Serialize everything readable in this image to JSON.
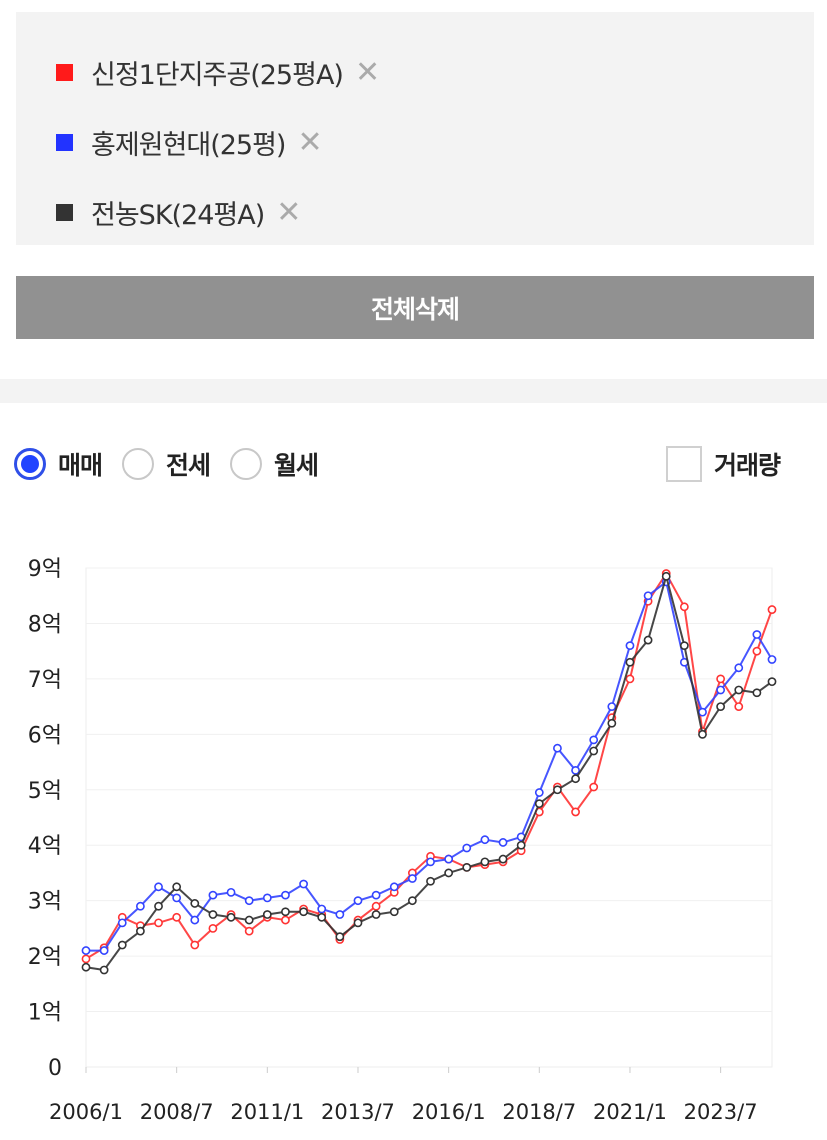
{
  "compare_list": {
    "items": [
      {
        "label": "신정1단지주공(25평A)",
        "color": "#ff1a1a"
      },
      {
        "label": "홍제원현대(25평)",
        "color": "#2233ff"
      },
      {
        "label": "전농SK(24평A)",
        "color": "#333333"
      }
    ],
    "remove_glyph": "✕"
  },
  "delete_all_label": "전체삭제",
  "trade_type": {
    "options": [
      "매매",
      "전세",
      "월세"
    ],
    "selected": "매매"
  },
  "volume_label": "거래량",
  "volume_checked": false,
  "chart_data": {
    "type": "line",
    "title": "",
    "xlabel": "",
    "ylabel": "",
    "x_ticks": [
      "2006/1",
      "2008/7",
      "2011/1",
      "2013/7",
      "2016/1",
      "2018/7",
      "2021/1",
      "2023/7"
    ],
    "x_range": [
      "2006/1",
      "2024/12"
    ],
    "y_ticks": [
      "0",
      "1억",
      "2억",
      "3억",
      "4억",
      "5억",
      "6억",
      "7억",
      "8억",
      "9억"
    ],
    "ylim": [
      0,
      9
    ],
    "y_unit": "억",
    "grid": true,
    "marker": "hollow-circle",
    "series": [
      {
        "name": "신정1단지주공(25평A)",
        "color": "#ff3333",
        "points": [
          [
            "2006/1",
            1.95
          ],
          [
            "2006/7",
            2.15
          ],
          [
            "2007/1",
            2.7
          ],
          [
            "2007/7",
            2.55
          ],
          [
            "2008/1",
            2.6
          ],
          [
            "2008/7",
            2.7
          ],
          [
            "2009/1",
            2.2
          ],
          [
            "2009/7",
            2.5
          ],
          [
            "2010/1",
            2.75
          ],
          [
            "2010/7",
            2.45
          ],
          [
            "2011/1",
            2.7
          ],
          [
            "2011/7",
            2.65
          ],
          [
            "2012/1",
            2.85
          ],
          [
            "2012/7",
            2.75
          ],
          [
            "2013/1",
            2.3
          ],
          [
            "2013/7",
            2.65
          ],
          [
            "2014/1",
            2.9
          ],
          [
            "2014/7",
            3.15
          ],
          [
            "2015/1",
            3.5
          ],
          [
            "2015/7",
            3.8
          ],
          [
            "2016/1",
            3.75
          ],
          [
            "2016/7",
            3.6
          ],
          [
            "2017/1",
            3.65
          ],
          [
            "2017/7",
            3.7
          ],
          [
            "2018/1",
            3.9
          ],
          [
            "2018/7",
            4.6
          ],
          [
            "2019/1",
            5.05
          ],
          [
            "2019/7",
            4.6
          ],
          [
            "2020/1",
            5.05
          ],
          [
            "2020/7",
            6.3
          ],
          [
            "2021/1",
            7.0
          ],
          [
            "2021/7",
            8.4
          ],
          [
            "2022/1",
            8.9
          ],
          [
            "2022/7",
            8.3
          ],
          [
            "2023/1",
            6.05
          ],
          [
            "2023/7",
            7.0
          ],
          [
            "2024/1",
            6.5
          ],
          [
            "2024/7",
            7.5
          ],
          [
            "2024/12",
            8.25
          ]
        ]
      },
      {
        "name": "홍제원현대(25평)",
        "color": "#3344ff",
        "points": [
          [
            "2006/1",
            2.1
          ],
          [
            "2006/7",
            2.1
          ],
          [
            "2007/1",
            2.6
          ],
          [
            "2007/7",
            2.9
          ],
          [
            "2008/1",
            3.25
          ],
          [
            "2008/7",
            3.05
          ],
          [
            "2009/1",
            2.65
          ],
          [
            "2009/7",
            3.1
          ],
          [
            "2010/1",
            3.15
          ],
          [
            "2010/7",
            3.0
          ],
          [
            "2011/1",
            3.05
          ],
          [
            "2011/7",
            3.1
          ],
          [
            "2012/1",
            3.3
          ],
          [
            "2012/7",
            2.85
          ],
          [
            "2013/1",
            2.75
          ],
          [
            "2013/7",
            3.0
          ],
          [
            "2014/1",
            3.1
          ],
          [
            "2014/7",
            3.25
          ],
          [
            "2015/1",
            3.4
          ],
          [
            "2015/7",
            3.7
          ],
          [
            "2016/1",
            3.75
          ],
          [
            "2016/7",
            3.95
          ],
          [
            "2017/1",
            4.1
          ],
          [
            "2017/7",
            4.05
          ],
          [
            "2018/1",
            4.15
          ],
          [
            "2018/7",
            4.95
          ],
          [
            "2019/1",
            5.75
          ],
          [
            "2019/7",
            5.35
          ],
          [
            "2020/1",
            5.9
          ],
          [
            "2020/7",
            6.5
          ],
          [
            "2021/1",
            7.6
          ],
          [
            "2021/7",
            8.5
          ],
          [
            "2022/1",
            8.75
          ],
          [
            "2022/7",
            7.3
          ],
          [
            "2023/1",
            6.4
          ],
          [
            "2023/7",
            6.8
          ],
          [
            "2024/1",
            7.2
          ],
          [
            "2024/7",
            7.8
          ],
          [
            "2024/12",
            7.35
          ]
        ]
      },
      {
        "name": "전농SK(24평A)",
        "color": "#333333",
        "points": [
          [
            "2006/1",
            1.8
          ],
          [
            "2006/7",
            1.75
          ],
          [
            "2007/1",
            2.2
          ],
          [
            "2007/7",
            2.45
          ],
          [
            "2008/1",
            2.9
          ],
          [
            "2008/7",
            3.25
          ],
          [
            "2009/1",
            2.95
          ],
          [
            "2009/7",
            2.75
          ],
          [
            "2010/1",
            2.7
          ],
          [
            "2010/7",
            2.65
          ],
          [
            "2011/1",
            2.75
          ],
          [
            "2011/7",
            2.8
          ],
          [
            "2012/1",
            2.8
          ],
          [
            "2012/7",
            2.7
          ],
          [
            "2013/1",
            2.35
          ],
          [
            "2013/7",
            2.6
          ],
          [
            "2014/1",
            2.75
          ],
          [
            "2014/7",
            2.8
          ],
          [
            "2015/1",
            3.0
          ],
          [
            "2015/7",
            3.35
          ],
          [
            "2016/1",
            3.5
          ],
          [
            "2016/7",
            3.6
          ],
          [
            "2017/1",
            3.7
          ],
          [
            "2017/7",
            3.75
          ],
          [
            "2018/1",
            4.0
          ],
          [
            "2018/7",
            4.75
          ],
          [
            "2019/1",
            5.0
          ],
          [
            "2019/7",
            5.2
          ],
          [
            "2020/1",
            5.7
          ],
          [
            "2020/7",
            6.2
          ],
          [
            "2021/1",
            7.3
          ],
          [
            "2021/7",
            7.7
          ],
          [
            "2022/1",
            8.85
          ],
          [
            "2022/7",
            7.6
          ],
          [
            "2023/1",
            6.0
          ],
          [
            "2023/7",
            6.5
          ],
          [
            "2024/1",
            6.8
          ],
          [
            "2024/7",
            6.75
          ],
          [
            "2024/12",
            6.95
          ]
        ]
      }
    ]
  }
}
